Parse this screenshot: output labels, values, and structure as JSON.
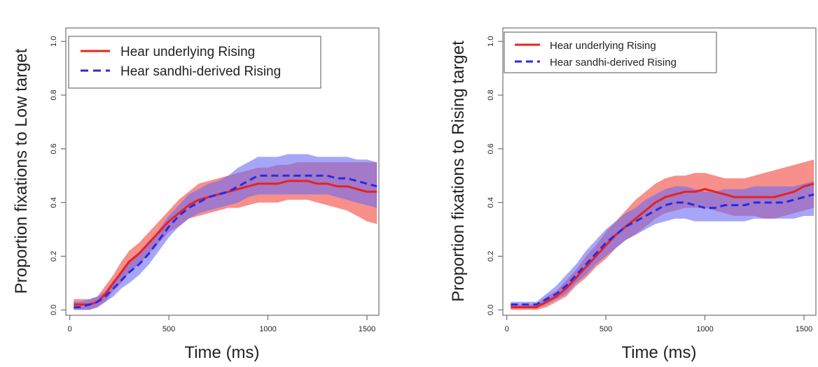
{
  "chart_data": [
    {
      "type": "line",
      "xlabel": "Time (ms)",
      "ylabel": "Proportion fixations to Low target",
      "xlim": [
        -20,
        1560
      ],
      "ylim": [
        -0.02,
        1.05
      ],
      "xticks": [
        0,
        500,
        1000,
        1500
      ],
      "yticks": [
        0.0,
        0.2,
        0.4,
        0.6,
        0.8,
        1.0
      ],
      "ytick_labels": [
        "0.0",
        "0.2",
        "0.4",
        "0.6",
        "0.8",
        "1.0"
      ],
      "legend_position": "top-left",
      "series": [
        {
          "name": "Hear underlying Rising",
          "color": "#e8221e",
          "band_color": "#f46a63",
          "style": "solid",
          "x": [
            20,
            50,
            100,
            140,
            180,
            220,
            260,
            300,
            350,
            400,
            450,
            500,
            550,
            600,
            650,
            700,
            750,
            800,
            850,
            900,
            950,
            1000,
            1050,
            1100,
            1150,
            1200,
            1250,
            1300,
            1350,
            1400,
            1450,
            1500,
            1550
          ],
          "y": [
            0.02,
            0.02,
            0.02,
            0.03,
            0.06,
            0.1,
            0.14,
            0.18,
            0.21,
            0.25,
            0.29,
            0.33,
            0.36,
            0.39,
            0.41,
            0.42,
            0.43,
            0.44,
            0.45,
            0.46,
            0.47,
            0.47,
            0.47,
            0.48,
            0.48,
            0.48,
            0.47,
            0.47,
            0.46,
            0.46,
            0.45,
            0.44,
            0.44
          ],
          "upper": [
            0.04,
            0.04,
            0.04,
            0.05,
            0.09,
            0.13,
            0.18,
            0.22,
            0.25,
            0.29,
            0.33,
            0.37,
            0.41,
            0.44,
            0.47,
            0.48,
            0.49,
            0.5,
            0.51,
            0.52,
            0.53,
            0.53,
            0.54,
            0.54,
            0.55,
            0.55,
            0.55,
            0.55,
            0.55,
            0.55,
            0.55,
            0.55,
            0.55
          ],
          "lower": [
            0.0,
            0.0,
            0.0,
            0.01,
            0.03,
            0.07,
            0.1,
            0.14,
            0.17,
            0.21,
            0.25,
            0.29,
            0.31,
            0.34,
            0.35,
            0.36,
            0.37,
            0.38,
            0.38,
            0.39,
            0.4,
            0.4,
            0.4,
            0.41,
            0.41,
            0.41,
            0.4,
            0.39,
            0.38,
            0.37,
            0.35,
            0.33,
            0.32
          ]
        },
        {
          "name": "Hear sandhi-derived Rising",
          "color": "#2a2ae0",
          "band_color": "#6b6bf5",
          "style": "dashed",
          "x": [
            20,
            50,
            100,
            140,
            180,
            220,
            260,
            300,
            350,
            400,
            450,
            500,
            550,
            600,
            650,
            700,
            750,
            800,
            850,
            900,
            950,
            1000,
            1050,
            1100,
            1150,
            1200,
            1250,
            1300,
            1350,
            1400,
            1450,
            1500,
            1550
          ],
          "y": [
            0.01,
            0.01,
            0.02,
            0.03,
            0.05,
            0.08,
            0.11,
            0.14,
            0.17,
            0.21,
            0.26,
            0.31,
            0.35,
            0.38,
            0.4,
            0.42,
            0.43,
            0.44,
            0.46,
            0.48,
            0.5,
            0.5,
            0.5,
            0.5,
            0.5,
            0.5,
            0.5,
            0.5,
            0.49,
            0.49,
            0.48,
            0.47,
            0.46
          ],
          "upper": [
            0.03,
            0.03,
            0.04,
            0.05,
            0.07,
            0.11,
            0.14,
            0.18,
            0.21,
            0.25,
            0.3,
            0.35,
            0.39,
            0.43,
            0.45,
            0.47,
            0.48,
            0.5,
            0.53,
            0.55,
            0.57,
            0.57,
            0.57,
            0.58,
            0.58,
            0.58,
            0.57,
            0.57,
            0.57,
            0.57,
            0.56,
            0.56,
            0.55
          ],
          "lower": [
            0.0,
            0.0,
            0.0,
            0.01,
            0.03,
            0.05,
            0.08,
            0.1,
            0.13,
            0.17,
            0.22,
            0.27,
            0.31,
            0.34,
            0.36,
            0.37,
            0.38,
            0.39,
            0.4,
            0.42,
            0.43,
            0.43,
            0.43,
            0.43,
            0.43,
            0.43,
            0.43,
            0.43,
            0.42,
            0.41,
            0.4,
            0.39,
            0.38
          ]
        }
      ]
    },
    {
      "type": "line",
      "xlabel": "Time (ms)",
      "ylabel": "Proportion fixations to Rising target",
      "xlim": [
        -20,
        1560
      ],
      "ylim": [
        -0.02,
        1.05
      ],
      "xticks": [
        0,
        500,
        1000,
        1500
      ],
      "yticks": [
        0.0,
        0.2,
        0.4,
        0.6,
        0.8,
        1.0
      ],
      "ytick_labels": [
        "0.0",
        "0.2",
        "0.4",
        "0.6",
        "0.8",
        "1.0"
      ],
      "legend_position": "top-left",
      "series": [
        {
          "name": "Hear underlying Rising",
          "color": "#e8221e",
          "band_color": "#f46a63",
          "style": "solid",
          "x": [
            20,
            50,
            100,
            150,
            200,
            250,
            300,
            350,
            400,
            450,
            500,
            550,
            600,
            650,
            700,
            750,
            800,
            850,
            900,
            950,
            1000,
            1050,
            1100,
            1150,
            1200,
            1250,
            1300,
            1350,
            1400,
            1450,
            1500,
            1550
          ],
          "y": [
            0.01,
            0.01,
            0.01,
            0.01,
            0.03,
            0.05,
            0.08,
            0.12,
            0.16,
            0.2,
            0.24,
            0.28,
            0.31,
            0.34,
            0.37,
            0.4,
            0.42,
            0.43,
            0.44,
            0.44,
            0.45,
            0.44,
            0.43,
            0.42,
            0.42,
            0.42,
            0.42,
            0.42,
            0.43,
            0.44,
            0.46,
            0.47
          ],
          "upper": [
            0.02,
            0.02,
            0.02,
            0.02,
            0.05,
            0.07,
            0.11,
            0.15,
            0.2,
            0.24,
            0.29,
            0.33,
            0.37,
            0.41,
            0.44,
            0.47,
            0.49,
            0.5,
            0.5,
            0.51,
            0.51,
            0.5,
            0.49,
            0.49,
            0.49,
            0.5,
            0.51,
            0.52,
            0.53,
            0.54,
            0.55,
            0.56
          ],
          "lower": [
            0.0,
            0.0,
            0.0,
            0.0,
            0.01,
            0.03,
            0.05,
            0.09,
            0.12,
            0.16,
            0.19,
            0.23,
            0.26,
            0.28,
            0.31,
            0.34,
            0.36,
            0.37,
            0.38,
            0.38,
            0.38,
            0.37,
            0.36,
            0.35,
            0.35,
            0.35,
            0.34,
            0.34,
            0.35,
            0.36,
            0.37,
            0.38
          ]
        },
        {
          "name": "Hear sandhi-derived Rising",
          "color": "#2a2ae0",
          "band_color": "#6b6bf5",
          "style": "dashed",
          "x": [
            20,
            50,
            100,
            150,
            200,
            250,
            300,
            350,
            400,
            450,
            500,
            550,
            600,
            650,
            700,
            750,
            800,
            850,
            900,
            950,
            1000,
            1050,
            1100,
            1150,
            1200,
            1250,
            1300,
            1350,
            1400,
            1450,
            1500,
            1550
          ],
          "y": [
            0.02,
            0.02,
            0.02,
            0.02,
            0.04,
            0.06,
            0.09,
            0.13,
            0.17,
            0.21,
            0.25,
            0.28,
            0.31,
            0.33,
            0.35,
            0.37,
            0.39,
            0.4,
            0.4,
            0.39,
            0.38,
            0.38,
            0.39,
            0.39,
            0.39,
            0.4,
            0.4,
            0.4,
            0.4,
            0.41,
            0.42,
            0.43
          ],
          "upper": [
            0.03,
            0.03,
            0.03,
            0.03,
            0.06,
            0.09,
            0.13,
            0.17,
            0.22,
            0.26,
            0.3,
            0.33,
            0.36,
            0.38,
            0.41,
            0.43,
            0.45,
            0.46,
            0.46,
            0.45,
            0.44,
            0.44,
            0.45,
            0.45,
            0.45,
            0.46,
            0.46,
            0.46,
            0.46,
            0.46,
            0.47,
            0.48
          ],
          "lower": [
            0.01,
            0.01,
            0.01,
            0.01,
            0.02,
            0.04,
            0.06,
            0.1,
            0.13,
            0.17,
            0.2,
            0.23,
            0.26,
            0.28,
            0.3,
            0.32,
            0.33,
            0.34,
            0.34,
            0.33,
            0.33,
            0.33,
            0.33,
            0.33,
            0.33,
            0.34,
            0.34,
            0.34,
            0.34,
            0.34,
            0.35,
            0.35
          ]
        }
      ]
    }
  ]
}
